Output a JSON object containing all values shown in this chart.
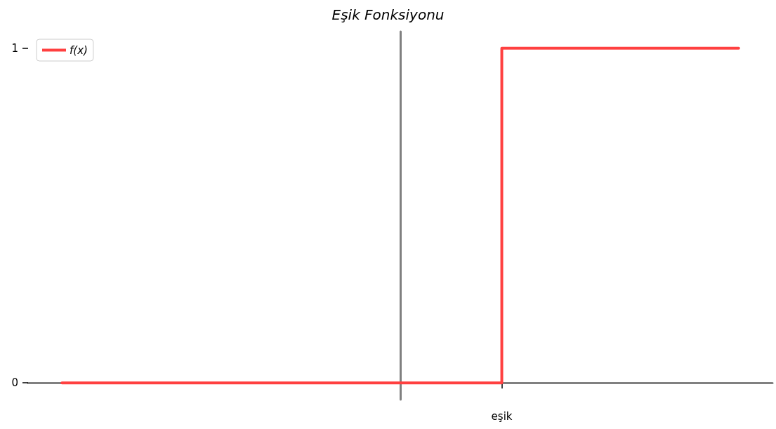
{
  "chart_data": {
    "type": "step",
    "title": "Eşik Fonksiyonu",
    "categories": [
      null,
      null,
      null,
      null,
      null,
      null,
      null,
      null,
      null,
      null,
      null,
      null,
      null,
      "eşik",
      null,
      null,
      null,
      null,
      null,
      null,
      null
    ],
    "series": [
      {
        "name": "f(x)",
        "color": "#ff4040",
        "values": [
          0,
          0,
          0,
          0,
          0,
          0,
          0,
          0,
          0,
          0,
          0,
          0,
          0,
          1,
          1,
          1,
          1,
          1,
          1,
          1,
          1
        ]
      }
    ],
    "ylim": [
      -0.05,
      1.05
    ],
    "yticks": [
      0,
      1
    ],
    "legend": "top left",
    "marker": "none",
    "line_style": "solid"
  }
}
